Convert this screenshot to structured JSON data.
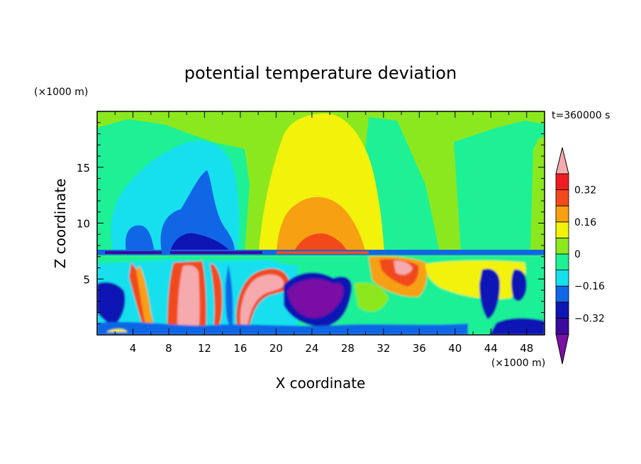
{
  "chart_data": {
    "type": "heatmap",
    "title": "potential temperature deviation",
    "xlabel": "X coordinate",
    "ylabel": "Z coordinate",
    "x_unit": "(×1000 m)",
    "y_unit": "(×1000 m)",
    "time_label": "t=360000 s",
    "xlim": [
      0,
      50
    ],
    "ylim": [
      0,
      20
    ],
    "xticks": [
      4,
      8,
      12,
      16,
      20,
      24,
      28,
      32,
      36,
      40,
      44,
      48
    ],
    "yticks": [
      5,
      10,
      15
    ],
    "colorbar": {
      "levels": [
        -0.4,
        -0.32,
        -0.24,
        -0.16,
        -0.08,
        0,
        0.08,
        0.16,
        0.24,
        0.32,
        0.4
      ],
      "tick_labels": [
        "0.32",
        "0.16",
        "0",
        "−0.16",
        "−0.32"
      ],
      "tick_values": [
        0.32,
        0.16,
        0,
        -0.16,
        -0.32
      ],
      "colors": [
        "#7a0fa3",
        "#3a0a9c",
        "#0f14b4",
        "#1166e6",
        "#16e0ee",
        "#1ef096",
        "#8ce81e",
        "#f2f20a",
        "#f7a012",
        "#f2491b",
        "#ee1c20",
        "#f5aaae"
      ]
    }
  }
}
